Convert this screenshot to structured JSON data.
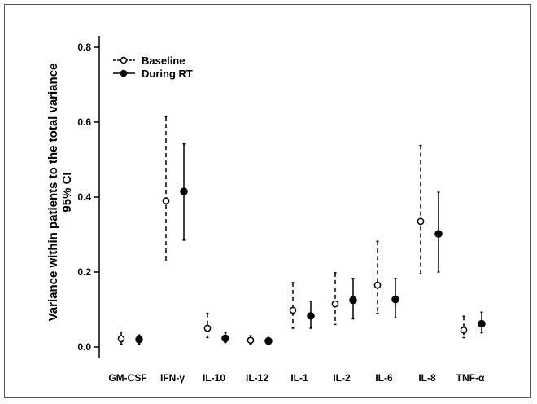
{
  "chart_data": {
    "type": "scatter",
    "subtype": "point-with-error-bars",
    "ylabel_line1": "Variance within patients to the total variance",
    "ylabel_line2": "95% CI",
    "ylim": [
      0,
      0.85
    ],
    "yticks": [
      "0.0",
      "0.2",
      "0.4",
      "0.6",
      "0.8"
    ],
    "categories": [
      "GM-CSF",
      "IFN-γ",
      "IL-10",
      "IL-12",
      "IL-1",
      "IL-2",
      "IL-6",
      "IL-8",
      "TNF-α"
    ],
    "legend_position": "top-left",
    "series": [
      {
        "name": "Baseline",
        "marker": "open-circle",
        "line_style": "dashed",
        "values": [
          0.022,
          0.39,
          0.05,
          0.018,
          0.098,
          0.115,
          0.165,
          0.335,
          0.045
        ],
        "lower": [
          0.008,
          0.23,
          0.025,
          0.008,
          0.05,
          0.06,
          0.09,
          0.195,
          0.025
        ],
        "upper": [
          0.04,
          0.615,
          0.09,
          0.03,
          0.172,
          0.198,
          0.282,
          0.538,
          0.082
        ]
      },
      {
        "name": "During RT",
        "marker": "filled-circle",
        "line_style": "solid",
        "values": [
          0.02,
          0.415,
          0.023,
          0.016,
          0.083,
          0.125,
          0.127,
          0.302,
          0.062
        ],
        "lower": [
          0.008,
          0.285,
          0.012,
          0.008,
          0.05,
          0.075,
          0.078,
          0.2,
          0.038
        ],
        "upper": [
          0.032,
          0.542,
          0.038,
          0.025,
          0.122,
          0.183,
          0.183,
          0.413,
          0.093
        ]
      }
    ]
  },
  "colors": {
    "axis": "#000000",
    "marker": "#000000",
    "frame": "#555555"
  }
}
